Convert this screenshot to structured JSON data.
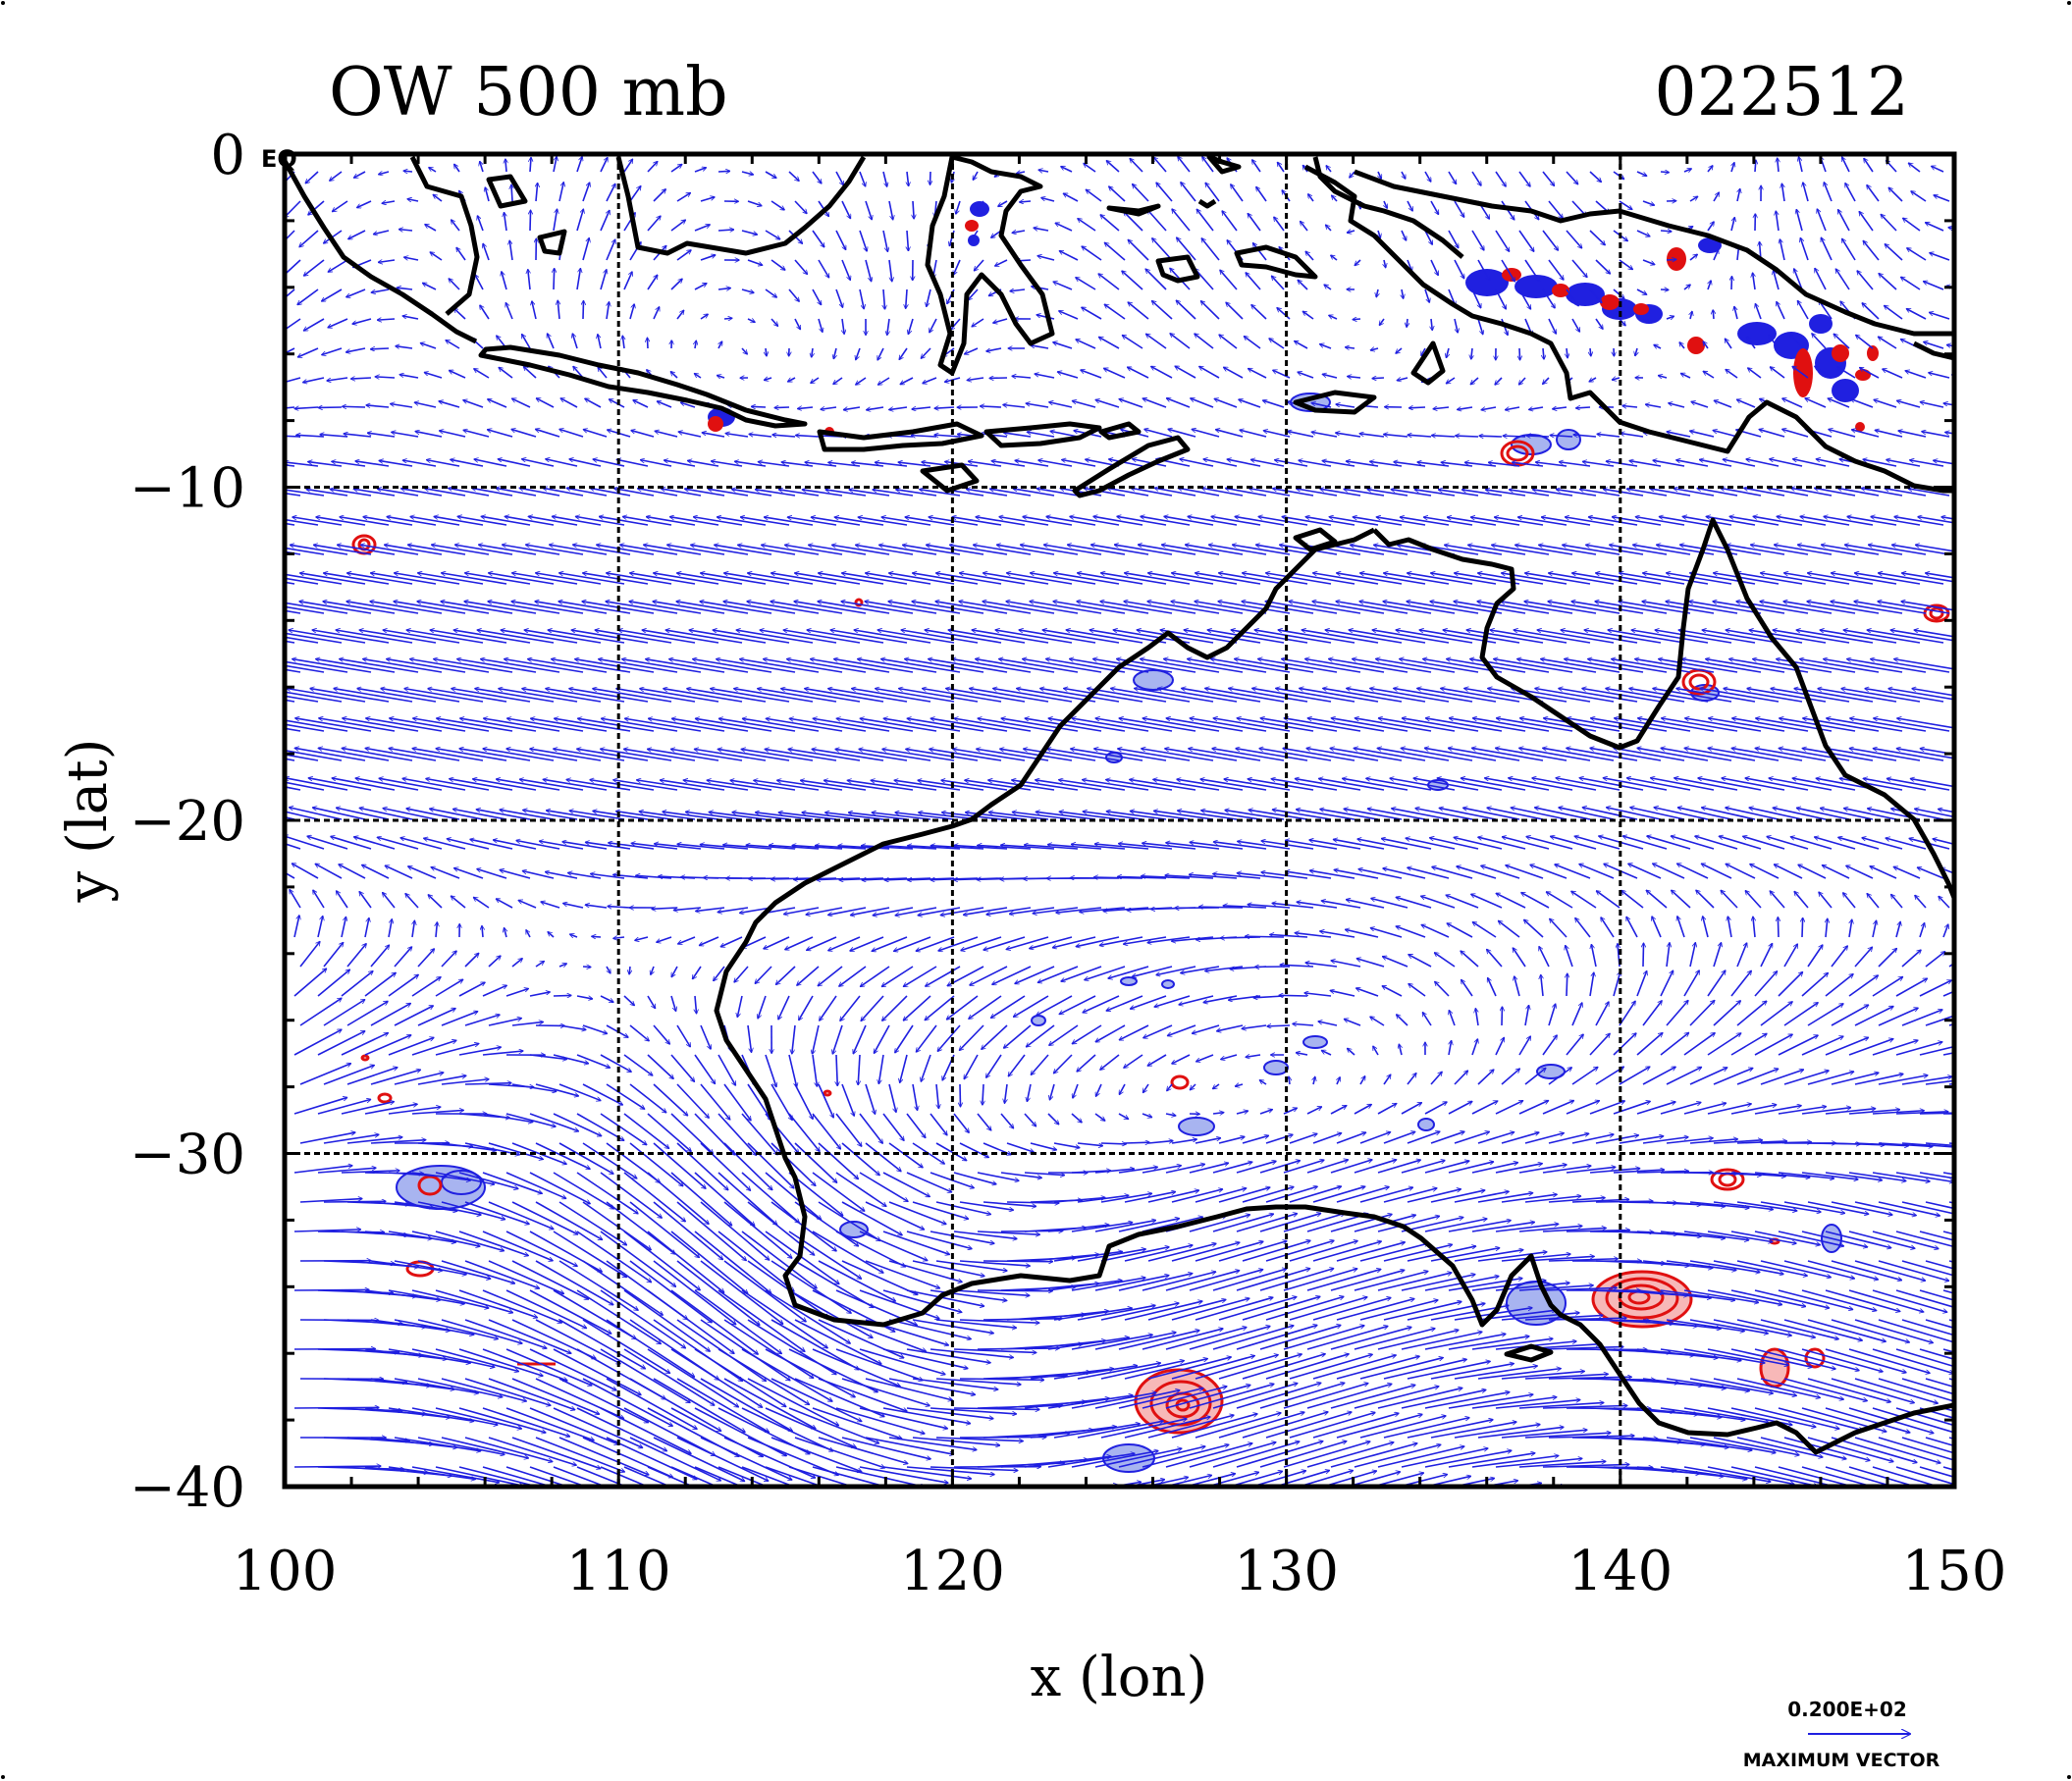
{
  "header": {
    "title_left": "OW 500 mb",
    "title_right": "022512"
  },
  "map": {
    "x_label": "x (lon)",
    "y_label": "y (lat)",
    "xlim": [
      100,
      150
    ],
    "ylim": [
      -40,
      0
    ],
    "x_ticks": [
      "100",
      "110",
      "120",
      "130",
      "140",
      "150"
    ],
    "y_ticks": [
      "0",
      "−10",
      "−20",
      "−30",
      "−40"
    ],
    "eq_marker": "EQ",
    "grid_lon": [
      110,
      120,
      130,
      140
    ],
    "grid_lat": [
      -10,
      -20,
      -30
    ],
    "colors": {
      "vectors": "#1f1fe0",
      "positive_contour": "#e01010",
      "negative_contour": "#2020e0",
      "positive_fill": "#f7b8b8",
      "negative_fill": "#a8b4f0",
      "coast": "#000000"
    }
  },
  "legend": {
    "vector_value": "0.200E+02",
    "vector_label": "MAXIMUM VECTOR"
  }
}
